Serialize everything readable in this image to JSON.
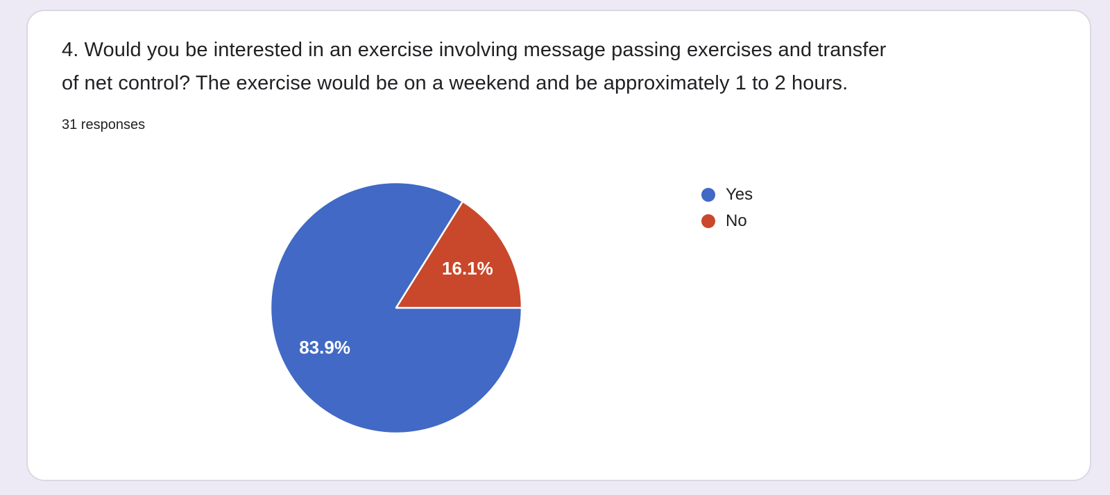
{
  "page": {
    "background_color": "#edeaf6"
  },
  "card": {
    "background_color": "#ffffff",
    "border_color": "#d9d9e1"
  },
  "question": {
    "title_lines": [
      "4. Would you be interested in an exercise involving message passing exercises and transfer",
      "of net control? The exercise would be on a weekend and be approximately 1 to 2 hours."
    ],
    "responses_count": "31 responses"
  },
  "chart_data": {
    "type": "pie",
    "title": "4. Would you be interested in an exercise involving message passing exercises and transfer of net control? The exercise would be on a weekend and be approximately 1 to 2 hours.",
    "total_responses": 31,
    "legend_position": "right",
    "start_angle": "east",
    "direction": "clockwise",
    "slice_border_color": "#ffffff",
    "label_text_color": "#ffffff",
    "series": [
      {
        "name": "Yes",
        "percent": 83.9,
        "label": "83.9%",
        "color": "#4169c5"
      },
      {
        "name": "No",
        "percent": 16.1,
        "label": "16.1%",
        "color": "#c9472a"
      }
    ]
  }
}
